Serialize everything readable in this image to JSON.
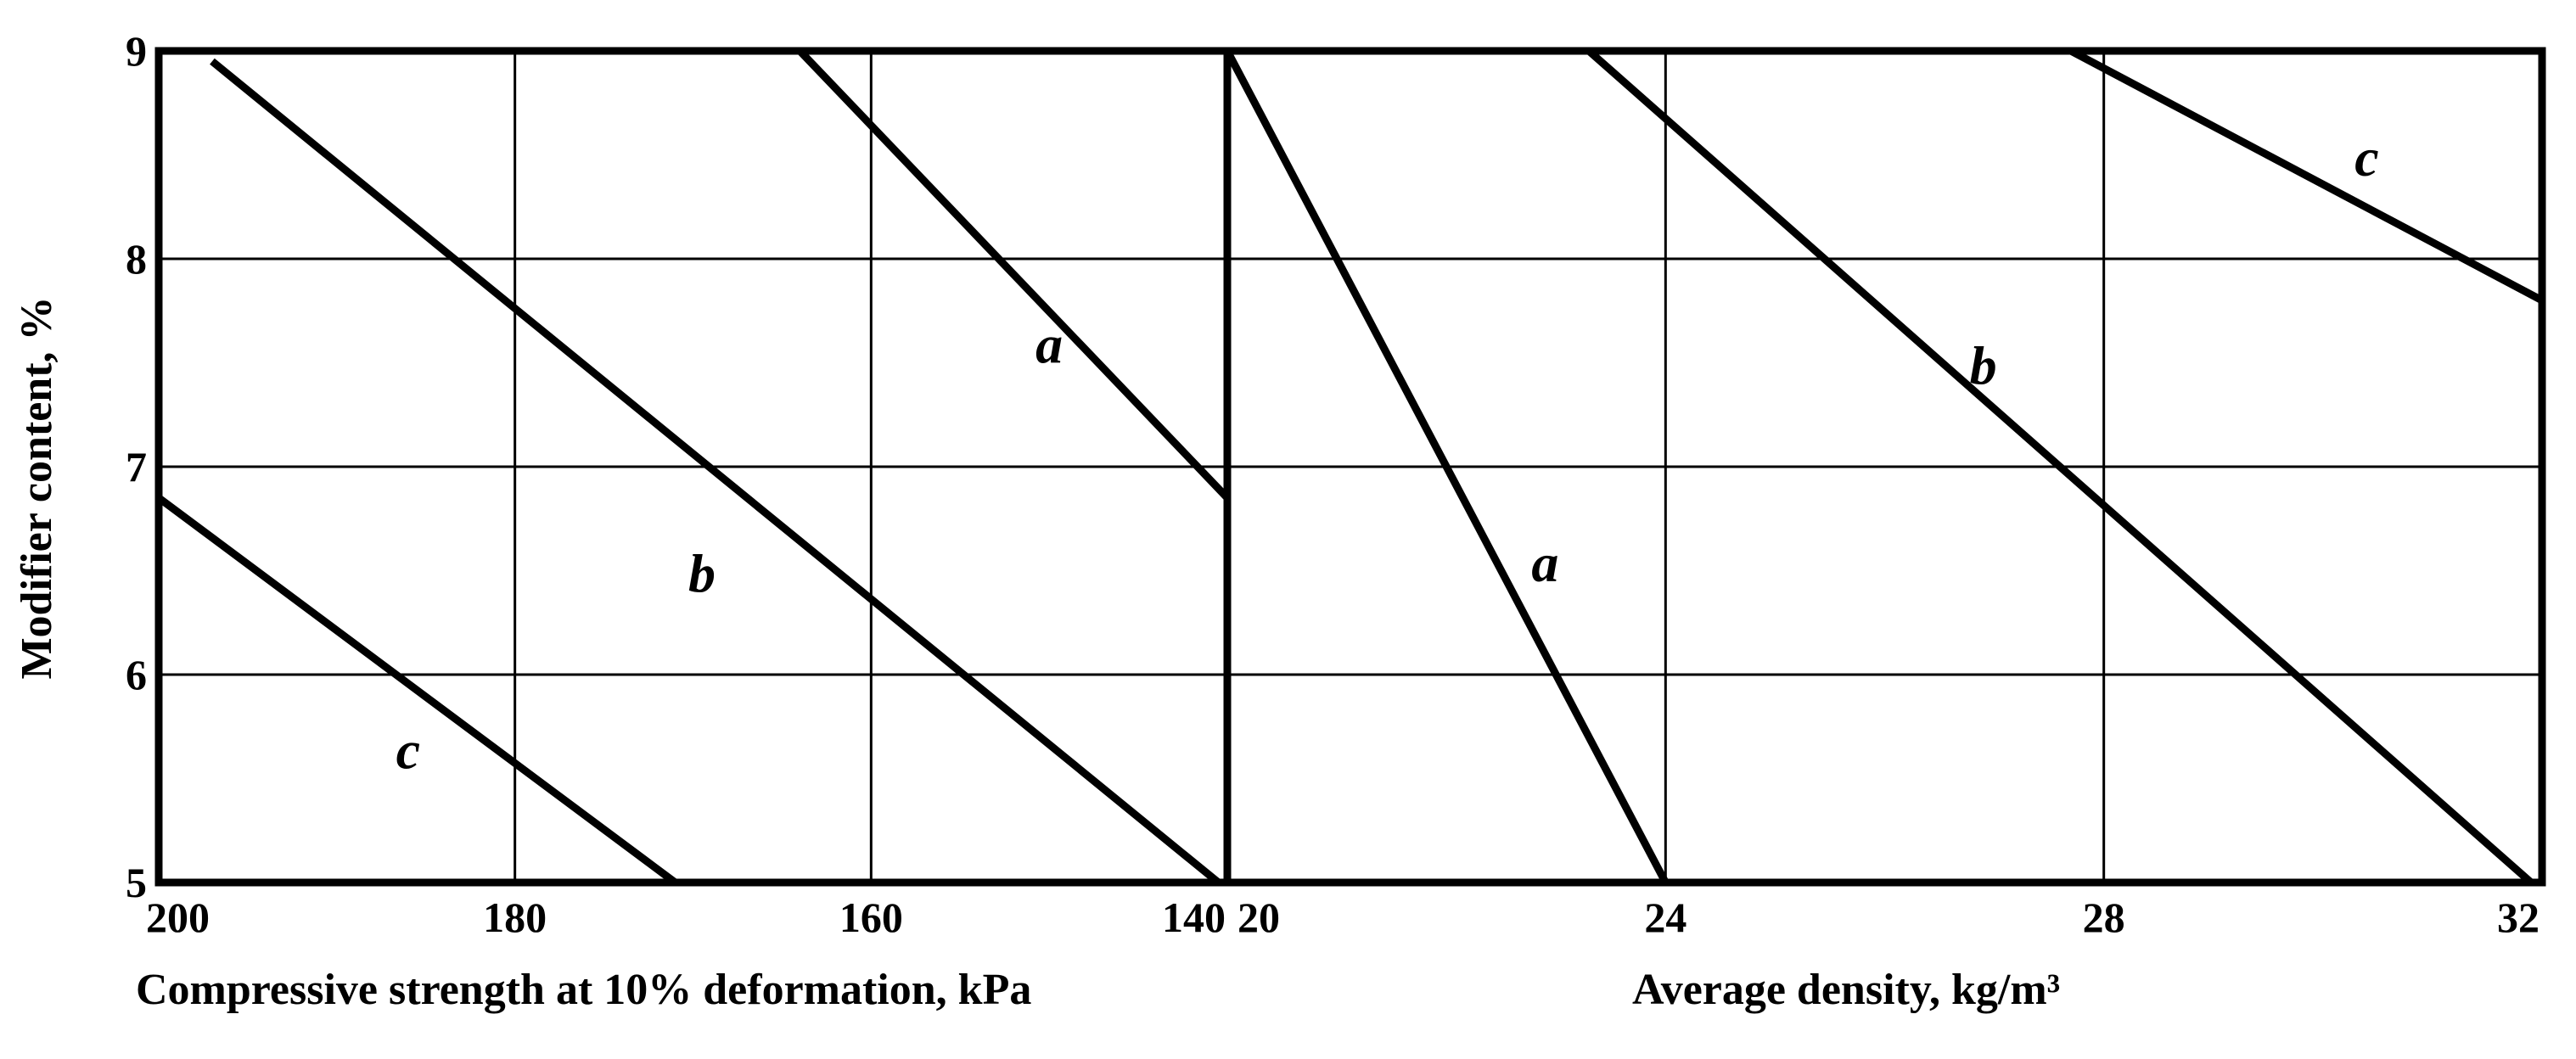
{
  "chart_data": [
    {
      "type": "line",
      "xlabel": "Compressive strength at 10% deformation, kPa",
      "ylabel": "Modifier content, %",
      "xlim": [
        200,
        140
      ],
      "ylim": [
        5,
        9
      ],
      "x_ticks": [
        "200",
        "180",
        "160",
        "140"
      ],
      "y_ticks": [
        "5",
        "6",
        "7",
        "8",
        "9"
      ],
      "grid": true,
      "series": [
        {
          "name": "a",
          "points": [
            [
              164,
              9.0
            ],
            [
              140,
              6.85
            ]
          ]
        },
        {
          "name": "b",
          "points": [
            [
              197,
              8.95
            ],
            [
              140.5,
              5.0
            ]
          ]
        },
        {
          "name": "c",
          "points": [
            [
              200,
              6.85
            ],
            [
              171,
              5.0
            ]
          ]
        }
      ],
      "annotations": [
        {
          "text": "a",
          "x": 150,
          "y": 7.5
        },
        {
          "text": "b",
          "x": 169.5,
          "y": 6.4
        },
        {
          "text": "c",
          "x": 186,
          "y": 5.55
        }
      ]
    },
    {
      "type": "line",
      "xlabel": "Average density, kg/m³",
      "ylabel": "",
      "xlim": [
        20,
        32
      ],
      "ylim": [
        5,
        9
      ],
      "x_ticks": [
        "20",
        "24",
        "28",
        "32"
      ],
      "y_ticks": [
        "5",
        "6",
        "7",
        "8",
        "9"
      ],
      "grid": true,
      "series": [
        {
          "name": "a",
          "points": [
            [
              20.0,
              9.0
            ],
            [
              24.0,
              5.0
            ]
          ]
        },
        {
          "name": "b",
          "points": [
            [
              23.3,
              9.0
            ],
            [
              31.9,
              5.0
            ]
          ]
        },
        {
          "name": "c",
          "points": [
            [
              27.7,
              9.0
            ],
            [
              32.0,
              7.8
            ]
          ]
        }
      ],
      "annotations": [
        {
          "text": "a",
          "x": 22.9,
          "y": 6.45
        },
        {
          "text": "b",
          "x": 26.9,
          "y": 7.4
        },
        {
          "text": "c",
          "x": 30.4,
          "y": 8.4
        }
      ]
    }
  ]
}
